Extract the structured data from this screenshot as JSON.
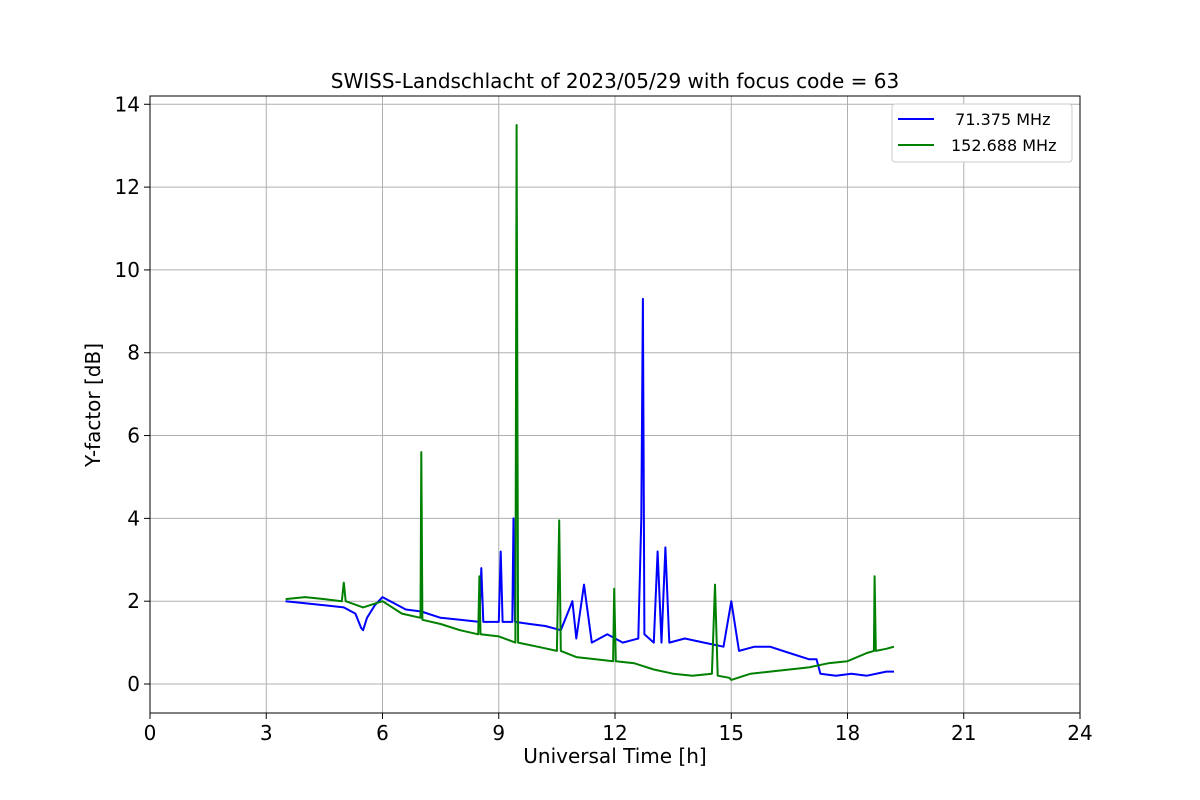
{
  "chart_data": {
    "type": "line",
    "title": "SWISS-Landschlacht of 2023/05/29 with focus code = 63",
    "xlabel": "Universal Time [h]",
    "ylabel": "Y-factor [dB]",
    "xlim": [
      0,
      24
    ],
    "ylim": [
      -0.7,
      14.2
    ],
    "xticks": [
      "0",
      "3",
      "6",
      "9",
      "12",
      "15",
      "18",
      "21",
      "24"
    ],
    "yticks": [
      "0",
      "2",
      "4",
      "6",
      "8",
      "10",
      "12",
      "14"
    ],
    "grid": true,
    "legend_position": "top-right",
    "series": [
      {
        "name": "  71.375 MHz",
        "color": "#0000ff",
        "points": [
          [
            3.5,
            2.0
          ],
          [
            4.0,
            1.95
          ],
          [
            4.5,
            1.9
          ],
          [
            5.0,
            1.85
          ],
          [
            5.3,
            1.7
          ],
          [
            5.45,
            1.35
          ],
          [
            5.5,
            1.3
          ],
          [
            5.6,
            1.6
          ],
          [
            5.8,
            1.9
          ],
          [
            6.0,
            2.1
          ],
          [
            6.3,
            1.95
          ],
          [
            6.6,
            1.8
          ],
          [
            7.0,
            1.75
          ],
          [
            7.5,
            1.6
          ],
          [
            8.0,
            1.55
          ],
          [
            8.5,
            1.5
          ],
          [
            8.55,
            2.8
          ],
          [
            8.6,
            1.5
          ],
          [
            9.0,
            1.5
          ],
          [
            9.05,
            3.2
          ],
          [
            9.1,
            1.5
          ],
          [
            9.35,
            1.5
          ],
          [
            9.38,
            4.0
          ],
          [
            9.42,
            1.5
          ],
          [
            9.8,
            1.45
          ],
          [
            10.2,
            1.4
          ],
          [
            10.6,
            1.3
          ],
          [
            10.9,
            2.0
          ],
          [
            11.0,
            1.1
          ],
          [
            11.2,
            2.4
          ],
          [
            11.4,
            1.0
          ],
          [
            11.8,
            1.2
          ],
          [
            12.2,
            1.0
          ],
          [
            12.6,
            1.1
          ],
          [
            12.68,
            4.0
          ],
          [
            12.72,
            9.3
          ],
          [
            12.76,
            1.2
          ],
          [
            13.0,
            1.0
          ],
          [
            13.1,
            3.2
          ],
          [
            13.2,
            1.0
          ],
          [
            13.3,
            3.3
          ],
          [
            13.4,
            1.0
          ],
          [
            13.8,
            1.1
          ],
          [
            14.3,
            1.0
          ],
          [
            14.8,
            0.9
          ],
          [
            15.0,
            2.0
          ],
          [
            15.2,
            0.8
          ],
          [
            15.6,
            0.9
          ],
          [
            16.0,
            0.9
          ],
          [
            16.5,
            0.75
          ],
          [
            17.0,
            0.6
          ],
          [
            17.2,
            0.6
          ],
          [
            17.3,
            0.25
          ],
          [
            17.7,
            0.2
          ],
          [
            18.1,
            0.25
          ],
          [
            18.5,
            0.2
          ],
          [
            19.0,
            0.3
          ],
          [
            19.2,
            0.3
          ]
        ]
      },
      {
        "name": "152.688 MHz",
        "color": "#008000",
        "points": [
          [
            3.5,
            2.05
          ],
          [
            4.0,
            2.1
          ],
          [
            4.5,
            2.05
          ],
          [
            4.95,
            2.0
          ],
          [
            5.0,
            2.45
          ],
          [
            5.05,
            2.0
          ],
          [
            5.5,
            1.85
          ],
          [
            6.0,
            2.0
          ],
          [
            6.5,
            1.7
          ],
          [
            6.98,
            1.6
          ],
          [
            7.0,
            5.6
          ],
          [
            7.03,
            1.55
          ],
          [
            7.5,
            1.45
          ],
          [
            8.0,
            1.3
          ],
          [
            8.47,
            1.2
          ],
          [
            8.5,
            2.6
          ],
          [
            8.53,
            1.2
          ],
          [
            9.0,
            1.15
          ],
          [
            9.43,
            1.0
          ],
          [
            9.46,
            13.5
          ],
          [
            9.5,
            1.0
          ],
          [
            10.0,
            0.9
          ],
          [
            10.5,
            0.8
          ],
          [
            10.56,
            3.95
          ],
          [
            10.6,
            0.8
          ],
          [
            11.0,
            0.65
          ],
          [
            11.5,
            0.6
          ],
          [
            11.95,
            0.55
          ],
          [
            11.98,
            2.3
          ],
          [
            12.02,
            0.55
          ],
          [
            12.5,
            0.5
          ],
          [
            13.0,
            0.35
          ],
          [
            13.5,
            0.25
          ],
          [
            14.0,
            0.2
          ],
          [
            14.5,
            0.25
          ],
          [
            14.58,
            2.4
          ],
          [
            14.65,
            0.2
          ],
          [
            14.95,
            0.15
          ],
          [
            15.0,
            0.1
          ],
          [
            15.5,
            0.25
          ],
          [
            16.0,
            0.3
          ],
          [
            16.5,
            0.35
          ],
          [
            17.0,
            0.4
          ],
          [
            17.5,
            0.5
          ],
          [
            18.0,
            0.55
          ],
          [
            18.5,
            0.75
          ],
          [
            18.68,
            0.8
          ],
          [
            18.7,
            2.6
          ],
          [
            18.73,
            0.8
          ],
          [
            19.0,
            0.85
          ],
          [
            19.2,
            0.9
          ]
        ]
      }
    ]
  }
}
